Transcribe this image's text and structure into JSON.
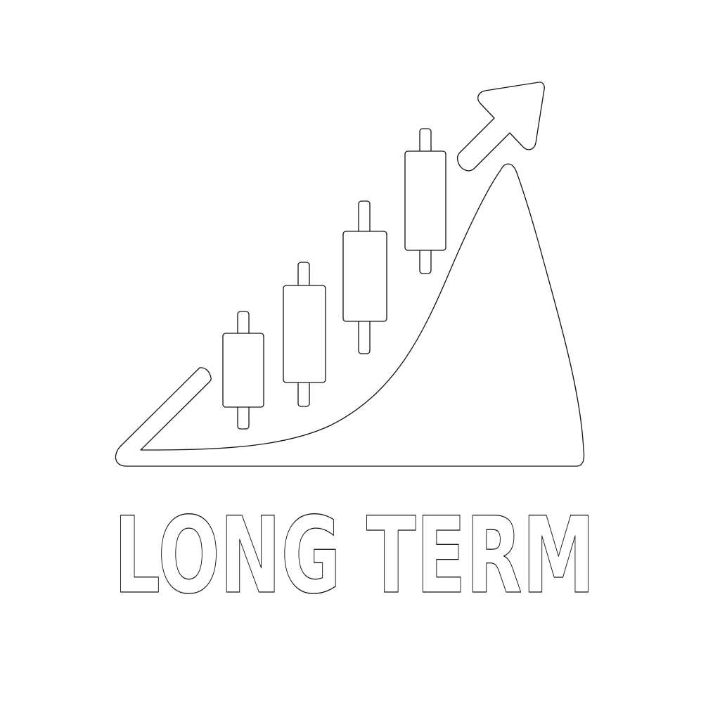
{
  "logo": {
    "caption": "LONG TERM",
    "icon": "candlestick-growth-arrow-icon",
    "colors": {
      "background": "#ffffff",
      "outline": "#111111"
    }
  }
}
